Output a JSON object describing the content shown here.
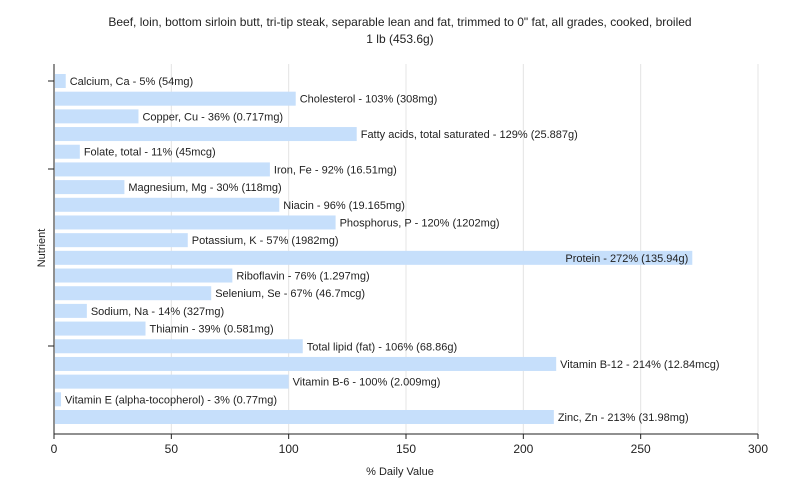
{
  "chart_data": {
    "type": "bar",
    "orientation": "horizontal",
    "title_line1": "Beef, loin, bottom sirloin butt, tri-tip steak, separable lean and fat, trimmed to 0\" fat, all grades, cooked, broiled",
    "title_line2": "1 lb (453.6g)",
    "xlabel": "% Daily Value",
    "ylabel": "Nutrient",
    "xlim": [
      0,
      300
    ],
    "xticks": [
      "0",
      "50",
      "100",
      "150",
      "200",
      "250",
      "300"
    ],
    "grid": true,
    "bar_color": "#c6dffb",
    "categories": [
      "Calcium, Ca",
      "Cholesterol",
      "Copper, Cu",
      "Fatty acids, total saturated",
      "Folate, total",
      "Iron, Fe",
      "Magnesium, Mg",
      "Niacin",
      "Phosphorus, P",
      "Potassium, K",
      "Protein",
      "Riboflavin",
      "Selenium, Se",
      "Sodium, Na",
      "Thiamin",
      "Total lipid (fat)",
      "Vitamin B-12",
      "Vitamin B-6",
      "Vitamin E (alpha-tocopherol)",
      "Zinc, Zn"
    ],
    "values": [
      5,
      103,
      36,
      129,
      11,
      92,
      30,
      96,
      120,
      57,
      272,
      76,
      67,
      14,
      39,
      106,
      214,
      100,
      3,
      213
    ],
    "labels": [
      "Calcium, Ca - 5% (54mg)",
      "Cholesterol - 103% (308mg)",
      "Copper, Cu - 36% (0.717mg)",
      "Fatty acids, total saturated - 129% (25.887g)",
      "Folate, total - 11% (45mcg)",
      "Iron, Fe - 92% (16.51mg)",
      "Magnesium, Mg - 30% (118mg)",
      "Niacin - 96% (19.165mg)",
      "Phosphorus, P - 120% (1202mg)",
      "Potassium, K - 57% (1982mg)",
      "Protein - 272% (135.94g)",
      "Riboflavin - 76% (1.297mg)",
      "Selenium, Se - 67% (46.7mcg)",
      "Sodium, Na - 14% (327mg)",
      "Thiamin - 39% (0.581mg)",
      "Total lipid (fat) - 106% (68.86g)",
      "Vitamin B-12 - 214% (12.84mcg)",
      "Vitamin B-6 - 100% (2.009mg)",
      "Vitamin E (alpha-tocopherol) - 3% (0.77mg)",
      "Zinc, Zn - 213% (31.98mg)"
    ]
  }
}
